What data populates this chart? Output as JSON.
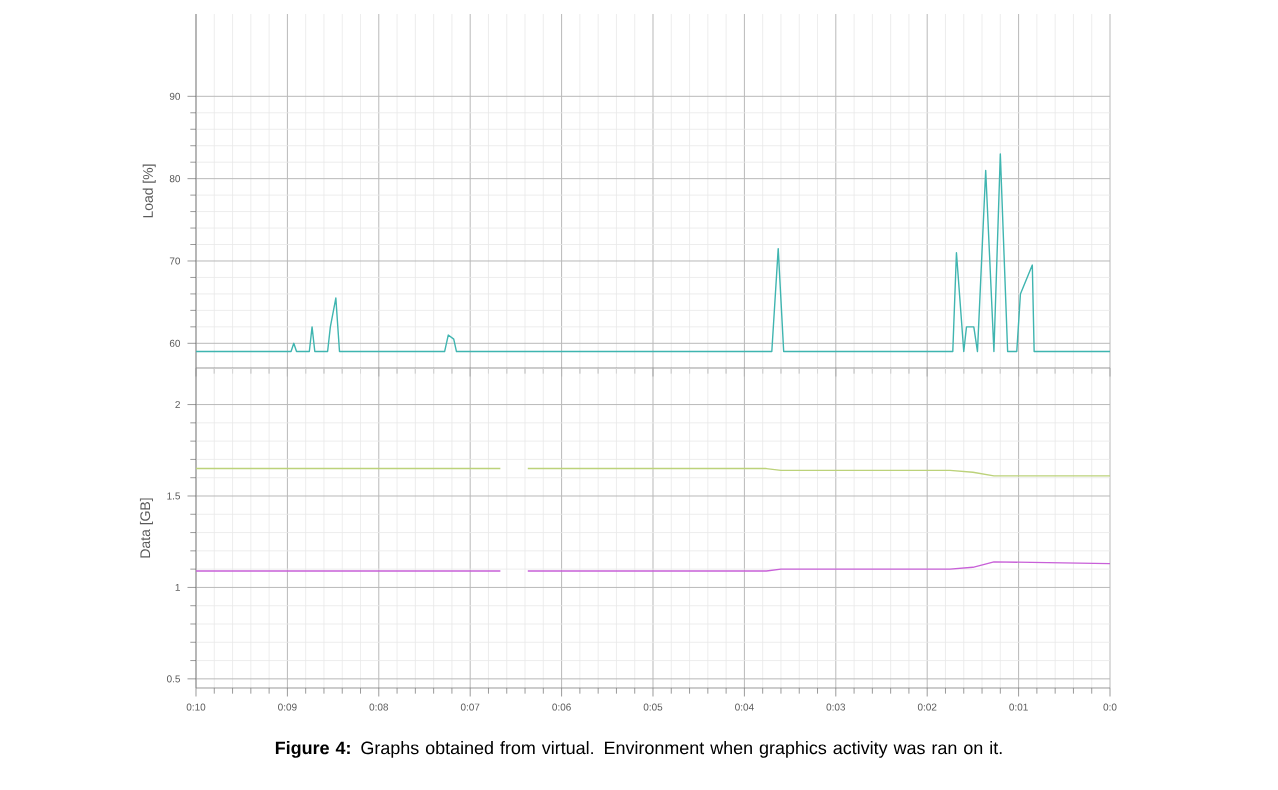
{
  "chart_data": [
    {
      "type": "line",
      "ylabel": "Load [%]",
      "xlim": [
        10,
        0
      ],
      "ylim": [
        57,
        100
      ],
      "yticks": [
        60,
        70,
        80,
        90
      ],
      "xticks": [
        10,
        9,
        8,
        7,
        6,
        5,
        4,
        3,
        2,
        1,
        0
      ],
      "tick_labels": "y",
      "grid": true,
      "series": [
        {
          "color": "#3fb5b0",
          "x": [
            10,
            8.96,
            8.93,
            8.9,
            8.76,
            8.73,
            8.7,
            8.56,
            8.53,
            8.47,
            8.43,
            7.28,
            7.24,
            7.18,
            7.15,
            3.7,
            3.63,
            3.57,
            1.72,
            1.68,
            1.6,
            1.57,
            1.49,
            1.45,
            1.36,
            1.27,
            1.2,
            1.12,
            1.02,
            0.98,
            0.85,
            0.83,
            0
          ],
          "values": [
            59,
            59,
            60,
            59,
            59,
            62,
            59,
            59,
            62,
            65.5,
            59,
            59,
            61,
            60.5,
            59,
            59,
            71.5,
            59,
            59,
            71,
            59,
            62,
            62,
            59,
            81,
            59,
            83,
            59,
            59,
            66,
            69.5,
            59,
            59
          ]
        }
      ]
    },
    {
      "type": "line",
      "ylabel": "Data [GB]",
      "xlim": [
        10,
        0
      ],
      "ylim": [
        0.45,
        2.2
      ],
      "yticks": [
        0.5,
        1,
        1.5,
        2
      ],
      "xticks": [
        {
          "value": 10,
          "label": "0:10"
        },
        {
          "value": 9,
          "label": "0:09"
        },
        {
          "value": 8,
          "label": "0:08"
        },
        {
          "value": 7,
          "label": "0:07"
        },
        {
          "value": 6,
          "label": "0:06"
        },
        {
          "value": 5,
          "label": "0:05"
        },
        {
          "value": 4,
          "label": "0:04"
        },
        {
          "value": 3,
          "label": "0:03"
        },
        {
          "value": 2,
          "label": "0:02"
        },
        {
          "value": 1,
          "label": "0:01"
        },
        {
          "value": 0,
          "label": "0:0"
        }
      ],
      "grid": true,
      "annotations": [
        "**Figure 4:** Graphs obtained from virtual. Environment when graphics activity was ran on it."
      ],
      "series": [
        {
          "color": "#bcd27a",
          "x": [
            10,
            6.67,
            6.5,
            6.37,
            3.76,
            3.6,
            1.75,
            1.5,
            1.27,
            0
          ],
          "values": [
            1.65,
            1.65,
            null,
            1.65,
            1.65,
            1.64,
            1.64,
            1.63,
            1.61,
            1.61
          ]
        },
        {
          "color": "#c860d8",
          "x": [
            10,
            6.67,
            6.5,
            6.37,
            3.76,
            3.6,
            1.75,
            1.5,
            1.27,
            0
          ],
          "values": [
            1.09,
            1.09,
            null,
            1.09,
            1.09,
            1.1,
            1.1,
            1.11,
            1.14,
            1.13
          ]
        }
      ]
    }
  ]
}
